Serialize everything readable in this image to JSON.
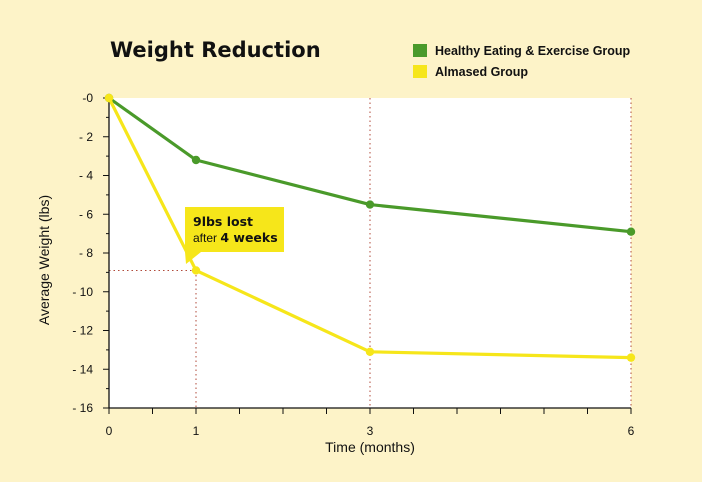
{
  "chart_data": {
    "type": "line",
    "title": "Weight Reduction",
    "xlabel": "Time (months)",
    "ylabel": "Average Weight (lbs)",
    "x_ticks": [
      "0",
      "1",
      "3",
      "6"
    ],
    "y_ticks": [
      "-0",
      "- 2",
      "- 4",
      "- 6",
      "- 8",
      "- 10",
      "- 12",
      "- 14",
      "- 16"
    ],
    "xlim": [
      0,
      6
    ],
    "ylim": [
      -16,
      0
    ],
    "legend_position": "top-right",
    "series": [
      {
        "name": "Healthy Eating & Exercise Group",
        "color": "#4a9a2a",
        "x": [
          0,
          1,
          3,
          6
        ],
        "y": [
          0,
          -3.2,
          -5.5,
          -6.9
        ]
      },
      {
        "name": "Almased Group",
        "color": "#f6e61a",
        "x": [
          0,
          1,
          3,
          6
        ],
        "y": [
          0,
          -8.9,
          -13.1,
          -13.4
        ]
      }
    ],
    "annotation": {
      "line1": "9lbs lost",
      "line2_prefix": "after ",
      "line2_bold": "4 weeks",
      "x": 1,
      "y": -8.9
    }
  }
}
